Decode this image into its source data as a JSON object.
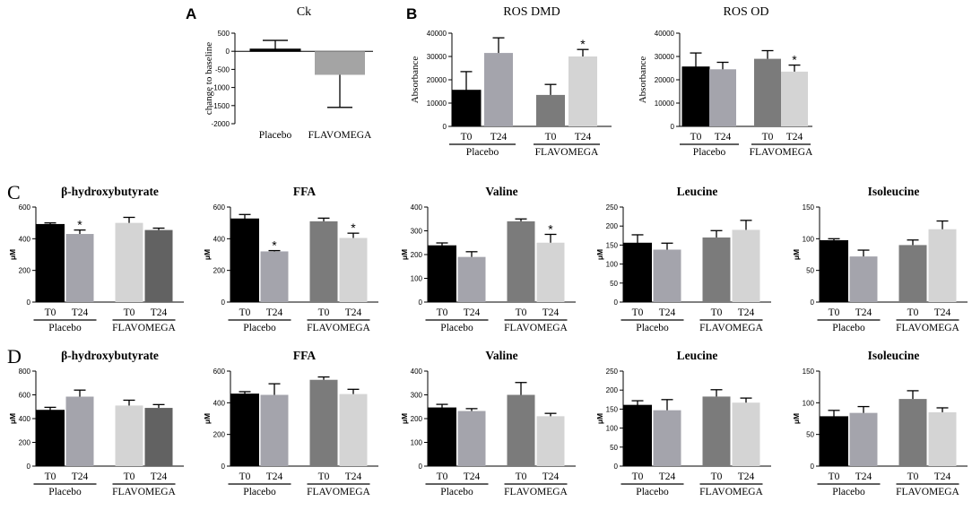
{
  "chart_data": [
    {
      "id": "A-ck",
      "panel": "A",
      "type": "bar",
      "title": "Ck",
      "ylabel": "change to baseline",
      "ylim": [
        -2000,
        500
      ],
      "yticks": [
        -2000,
        -1500,
        -1000,
        -500,
        0,
        500
      ],
      "categories": [
        "Placebo",
        "FLAVOMEGA"
      ],
      "values": [
        60,
        -650
      ],
      "errors": [
        240,
        900
      ],
      "colors": [
        "#000000",
        "#a4a4a4"
      ],
      "stars": [
        false,
        false
      ]
    },
    {
      "id": "B-dmd",
      "panel": "B",
      "type": "bar",
      "title": "ROS DMD",
      "ylabel": "Absorbance",
      "ylim": [
        0,
        40000
      ],
      "yticks": [
        0,
        10000,
        20000,
        30000,
        40000
      ],
      "categories": [
        "T0",
        "T24",
        "T0",
        "T24"
      ],
      "groups": [
        "Placebo",
        "FLAVOMEGA"
      ],
      "values": [
        15500,
        31500,
        13500,
        30000
      ],
      "errors": [
        8000,
        6500,
        4500,
        3000
      ],
      "colors": [
        "#000000",
        "#a4a4ac",
        "#7b7b7b",
        "#d4d4d4"
      ],
      "stars": [
        false,
        false,
        false,
        true
      ]
    },
    {
      "id": "B-od",
      "panel": "B",
      "type": "bar",
      "title": "ROS OD",
      "ylabel": "Absorbance",
      "ylim": [
        0,
        40000
      ],
      "yticks": [
        0,
        10000,
        20000,
        30000,
        40000
      ],
      "categories": [
        "T0",
        "T24",
        "T0",
        "T24"
      ],
      "groups": [
        "Placebo",
        "FLAVOMEGA"
      ],
      "values": [
        25500,
        24500,
        29000,
        23500
      ],
      "errors": [
        6000,
        3000,
        3500,
        2800
      ],
      "colors": [
        "#000000",
        "#a4a4ac",
        "#7b7b7b",
        "#d4d4d4"
      ],
      "stars": [
        false,
        false,
        false,
        true
      ]
    },
    {
      "id": "C-bhb",
      "panel": "C",
      "type": "bar",
      "title": "β-hydroxybutyrate",
      "ylabel": "μM",
      "ylim": [
        0,
        600
      ],
      "yticks": [
        0,
        200,
        400,
        600
      ],
      "categories": [
        "T0",
        "T24",
        "T0",
        "T24"
      ],
      "groups": [
        "Placebo",
        "FLAVOMEGA"
      ],
      "values": [
        490,
        430,
        500,
        455
      ],
      "errors": [
        10,
        25,
        35,
        12
      ],
      "colors": [
        "#000000",
        "#a4a4ac",
        "#d4d4d4",
        "#626262"
      ],
      "stars": [
        false,
        true,
        false,
        false
      ]
    },
    {
      "id": "C-ffa",
      "panel": "C",
      "type": "bar",
      "title": "FFA",
      "ylabel": "μM",
      "ylim": [
        0,
        600
      ],
      "yticks": [
        0,
        200,
        400,
        600
      ],
      "categories": [
        "T0",
        "T24",
        "T0",
        "T24"
      ],
      "groups": [
        "Placebo",
        "FLAVOMEGA"
      ],
      "values": [
        525,
        320,
        510,
        405
      ],
      "errors": [
        28,
        5,
        20,
        30
      ],
      "colors": [
        "#000000",
        "#a4a4ac",
        "#7b7b7b",
        "#d4d4d4"
      ],
      "stars": [
        false,
        true,
        false,
        true
      ]
    },
    {
      "id": "C-val",
      "panel": "C",
      "type": "bar",
      "title": "Valine",
      "ylabel": "μM",
      "ylim": [
        0,
        400
      ],
      "yticks": [
        0,
        100,
        200,
        300,
        400
      ],
      "categories": [
        "T0",
        "T24",
        "T0",
        "T24"
      ],
      "groups": [
        "Placebo",
        "FLAVOMEGA"
      ],
      "values": [
        237,
        190,
        340,
        250
      ],
      "errors": [
        12,
        22,
        10,
        35
      ],
      "colors": [
        "#000000",
        "#a4a4ac",
        "#7b7b7b",
        "#d4d4d4"
      ],
      "stars": [
        false,
        false,
        false,
        true
      ]
    },
    {
      "id": "C-leu",
      "panel": "C",
      "type": "bar",
      "title": "Leucine",
      "ylabel": "μM",
      "ylim": [
        0,
        250
      ],
      "yticks": [
        0,
        50,
        100,
        150,
        200,
        250
      ],
      "categories": [
        "T0",
        "T24",
        "T0",
        "T24"
      ],
      "groups": [
        "Placebo",
        "FLAVOMEGA"
      ],
      "values": [
        155,
        138,
        170,
        190
      ],
      "errors": [
        22,
        17,
        18,
        25
      ],
      "colors": [
        "#000000",
        "#a4a4ac",
        "#7b7b7b",
        "#d4d4d4"
      ],
      "stars": [
        false,
        false,
        false,
        false
      ]
    },
    {
      "id": "C-ile",
      "panel": "C",
      "type": "bar",
      "title": "Isoleucine",
      "ylabel": "μM",
      "ylim": [
        0,
        150
      ],
      "yticks": [
        0,
        50,
        100,
        150
      ],
      "categories": [
        "T0",
        "T24",
        "T0",
        "T24"
      ],
      "groups": [
        "Placebo",
        "FLAVOMEGA"
      ],
      "values": [
        97,
        72,
        90,
        115
      ],
      "errors": [
        3,
        10,
        8,
        13
      ],
      "colors": [
        "#000000",
        "#a4a4ac",
        "#7b7b7b",
        "#d4d4d4"
      ],
      "stars": [
        false,
        false,
        false,
        false
      ]
    },
    {
      "id": "D-bhb",
      "panel": "D",
      "type": "bar",
      "title": "β-hydroxybutyrate",
      "ylabel": "μM",
      "ylim": [
        0,
        800
      ],
      "yticks": [
        0,
        200,
        400,
        600,
        800
      ],
      "categories": [
        "T0",
        "T24",
        "T0",
        "T24"
      ],
      "groups": [
        "Placebo",
        "FLAVOMEGA"
      ],
      "values": [
        470,
        585,
        510,
        490
      ],
      "errors": [
        25,
        55,
        45,
        28
      ],
      "colors": [
        "#000000",
        "#a4a4ac",
        "#d4d4d4",
        "#626262"
      ],
      "stars": [
        false,
        false,
        false,
        false
      ]
    },
    {
      "id": "D-ffa",
      "panel": "D",
      "type": "bar",
      "title": "FFA",
      "ylabel": "μM",
      "ylim": [
        0,
        600
      ],
      "yticks": [
        0,
        200,
        400,
        600
      ],
      "categories": [
        "T0",
        "T24",
        "T0",
        "T24"
      ],
      "groups": [
        "Placebo",
        "FLAVOMEGA"
      ],
      "values": [
        455,
        450,
        545,
        455
      ],
      "errors": [
        15,
        70,
        18,
        30
      ],
      "colors": [
        "#000000",
        "#a4a4ac",
        "#7b7b7b",
        "#d4d4d4"
      ],
      "stars": [
        false,
        false,
        false,
        false
      ]
    },
    {
      "id": "D-val",
      "panel": "D",
      "type": "bar",
      "title": "Valine",
      "ylabel": "μM",
      "ylim": [
        0,
        400
      ],
      "yticks": [
        0,
        100,
        200,
        300,
        400
      ],
      "categories": [
        "T0",
        "T24",
        "T0",
        "T24"
      ],
      "groups": [
        "Placebo",
        "FLAVOMEGA"
      ],
      "values": [
        245,
        232,
        300,
        210
      ],
      "errors": [
        15,
        10,
        52,
        12
      ],
      "colors": [
        "#000000",
        "#a4a4ac",
        "#7b7b7b",
        "#d4d4d4"
      ],
      "stars": [
        false,
        false,
        false,
        false
      ]
    },
    {
      "id": "D-leu",
      "panel": "D",
      "type": "bar",
      "title": "Leucine",
      "ylabel": "μM",
      "ylim": [
        0,
        250
      ],
      "yticks": [
        0,
        50,
        100,
        150,
        200,
        250
      ],
      "categories": [
        "T0",
        "T24",
        "T0",
        "T24"
      ],
      "groups": [
        "Placebo",
        "FLAVOMEGA"
      ],
      "values": [
        160,
        147,
        183,
        167
      ],
      "errors": [
        12,
        28,
        18,
        12
      ],
      "colors": [
        "#000000",
        "#a4a4ac",
        "#7b7b7b",
        "#d4d4d4"
      ],
      "stars": [
        false,
        false,
        false,
        false
      ]
    },
    {
      "id": "D-ile",
      "panel": "D",
      "type": "bar",
      "title": "Isoleucine",
      "ylabel": "μM",
      "ylim": [
        0,
        150
      ],
      "yticks": [
        0,
        50,
        100,
        150
      ],
      "categories": [
        "T0",
        "T24",
        "T0",
        "T24"
      ],
      "groups": [
        "Placebo",
        "FLAVOMEGA"
      ],
      "values": [
        78,
        84,
        106,
        85
      ],
      "errors": [
        10,
        10,
        13,
        7
      ],
      "colors": [
        "#000000",
        "#a4a4ac",
        "#7b7b7b",
        "#d4d4d4"
      ],
      "stars": [
        false,
        false,
        false,
        false
      ]
    }
  ],
  "panel_labels": [
    "A",
    "B",
    "C",
    "D"
  ],
  "significance_marker": "*"
}
